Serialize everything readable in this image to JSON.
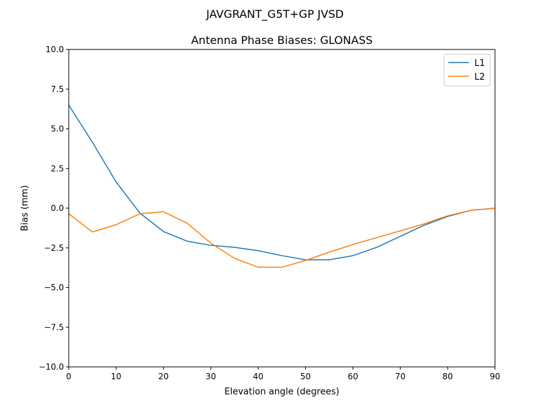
{
  "chart_data": {
    "type": "line",
    "suptitle": "JAVGRANT_G5T+GP JVSD",
    "title": "Antenna Phase Biases: GLONASS",
    "xlabel": "Elevation angle (degrees)",
    "ylabel": "Bias (mm)",
    "xlim": [
      0,
      90
    ],
    "ylim": [
      -10,
      10
    ],
    "xticks": [
      0,
      10,
      20,
      30,
      40,
      50,
      60,
      70,
      80,
      90
    ],
    "xtick_labels": [
      "0",
      "10",
      "20",
      "30",
      "40",
      "50",
      "60",
      "70",
      "80",
      "90"
    ],
    "yticks": [
      -10,
      -7.5,
      -5,
      -2.5,
      0,
      2.5,
      5,
      7.5,
      10
    ],
    "ytick_labels": [
      "−10.0",
      "−7.5",
      "−5.0",
      "−2.5",
      "0.0",
      "2.5",
      "5.0",
      "7.5",
      "10.0"
    ],
    "grid": false,
    "legend_position": "top-right",
    "x": [
      0,
      5,
      10,
      15,
      20,
      25,
      30,
      35,
      40,
      45,
      50,
      55,
      60,
      65,
      70,
      75,
      80,
      85,
      90
    ],
    "series": [
      {
        "name": "L1",
        "color": "#1f77b4",
        "values": [
          6.5,
          4.15,
          1.65,
          -0.3,
          -1.47,
          -2.08,
          -2.34,
          -2.47,
          -2.68,
          -2.99,
          -3.25,
          -3.25,
          -2.99,
          -2.47,
          -1.77,
          -1.08,
          -0.52,
          -0.13,
          0.0
        ]
      },
      {
        "name": "L2",
        "color": "#ff7f0e",
        "values": [
          -0.35,
          -1.5,
          -1.04,
          -0.35,
          -0.22,
          -0.95,
          -2.2,
          -3.16,
          -3.72,
          -3.72,
          -3.29,
          -2.77,
          -2.29,
          -1.86,
          -1.43,
          -0.99,
          -0.48,
          -0.13,
          0.0
        ]
      }
    ]
  }
}
